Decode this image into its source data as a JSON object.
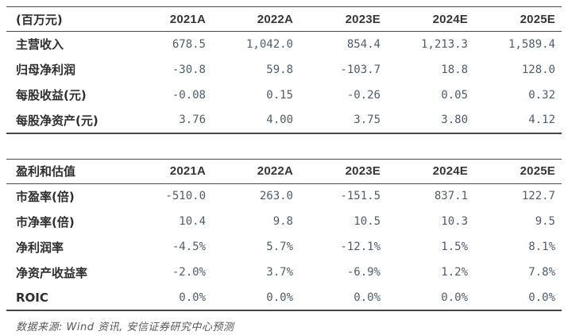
{
  "tables": [
    {
      "name": "income-summary",
      "headers": [
        "(百万元)",
        "2021A",
        "2022A",
        "2023E",
        "2024E",
        "2025E"
      ],
      "rows": [
        {
          "label": "主营收入",
          "values": [
            "678.5",
            "1,042.0",
            "854.4",
            "1,213.3",
            "1,589.4"
          ]
        },
        {
          "label": "归母净利润",
          "values": [
            "-30.8",
            "59.8",
            "-103.7",
            "18.8",
            "128.0"
          ]
        },
        {
          "label": "每股收益(元)",
          "values": [
            "-0.08",
            "0.15",
            "-0.26",
            "0.05",
            "0.32"
          ]
        },
        {
          "label": "每股净资产(元)",
          "values": [
            "3.76",
            "4.00",
            "3.75",
            "3.80",
            "4.12"
          ]
        }
      ]
    },
    {
      "name": "valuation-summary",
      "headers": [
        "盈利和估值",
        "2021A",
        "2022A",
        "2023E",
        "2024E",
        "2025E"
      ],
      "rows": [
        {
          "label": "市盈率(倍)",
          "values": [
            "-510.0",
            "263.0",
            "-151.5",
            "837.1",
            "122.7"
          ]
        },
        {
          "label": "市净率(倍)",
          "values": [
            "10.4",
            "9.8",
            "10.5",
            "10.3",
            "9.5"
          ]
        },
        {
          "label": "净利润率",
          "values": [
            "-4.5%",
            "5.7%",
            "-12.1%",
            "1.5%",
            "8.1%"
          ]
        },
        {
          "label": "净资产收益率",
          "values": [
            "-2.0%",
            "3.7%",
            "-6.9%",
            "1.2%",
            "7.8%"
          ]
        },
        {
          "label": "ROIC",
          "values": [
            "0.0%",
            "0.0%",
            "0.0%",
            "0.0%",
            "0.0%"
          ]
        }
      ]
    }
  ],
  "footer": {
    "source": "数据来源: Wind 资讯, 安信证券研究中心预测"
  },
  "colors": {
    "border": "#4a4a4a",
    "header_text": "#363636",
    "label_text": "#2e2e2e",
    "value_text": "#4e5c6b",
    "footer_text": "#565656",
    "background": "#ffffff"
  }
}
